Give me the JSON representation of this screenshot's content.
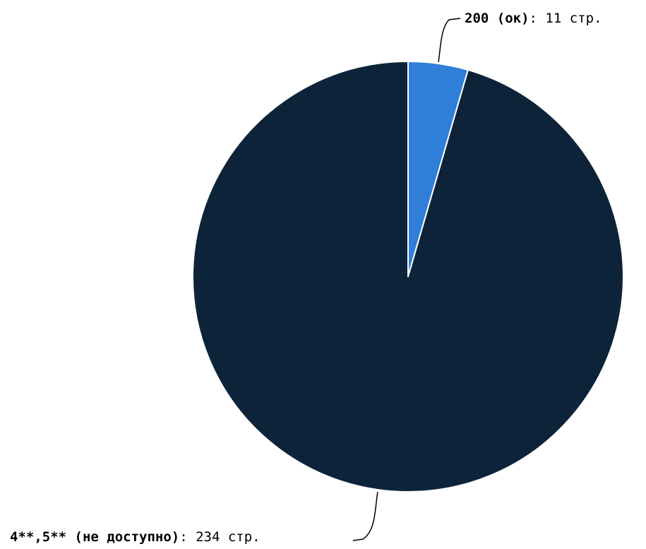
{
  "chart_data": {
    "type": "pie",
    "title": "",
    "unit": "стр.",
    "slices": [
      {
        "name": "200 (ок)",
        "value": 11,
        "color": "#2f7ed8"
      },
      {
        "name": "4**,5** (не доступно)",
        "value": 234,
        "color": "#0d233a"
      }
    ],
    "slice_border_color": "#ffffff",
    "label_separator": ": ",
    "legend": false
  }
}
